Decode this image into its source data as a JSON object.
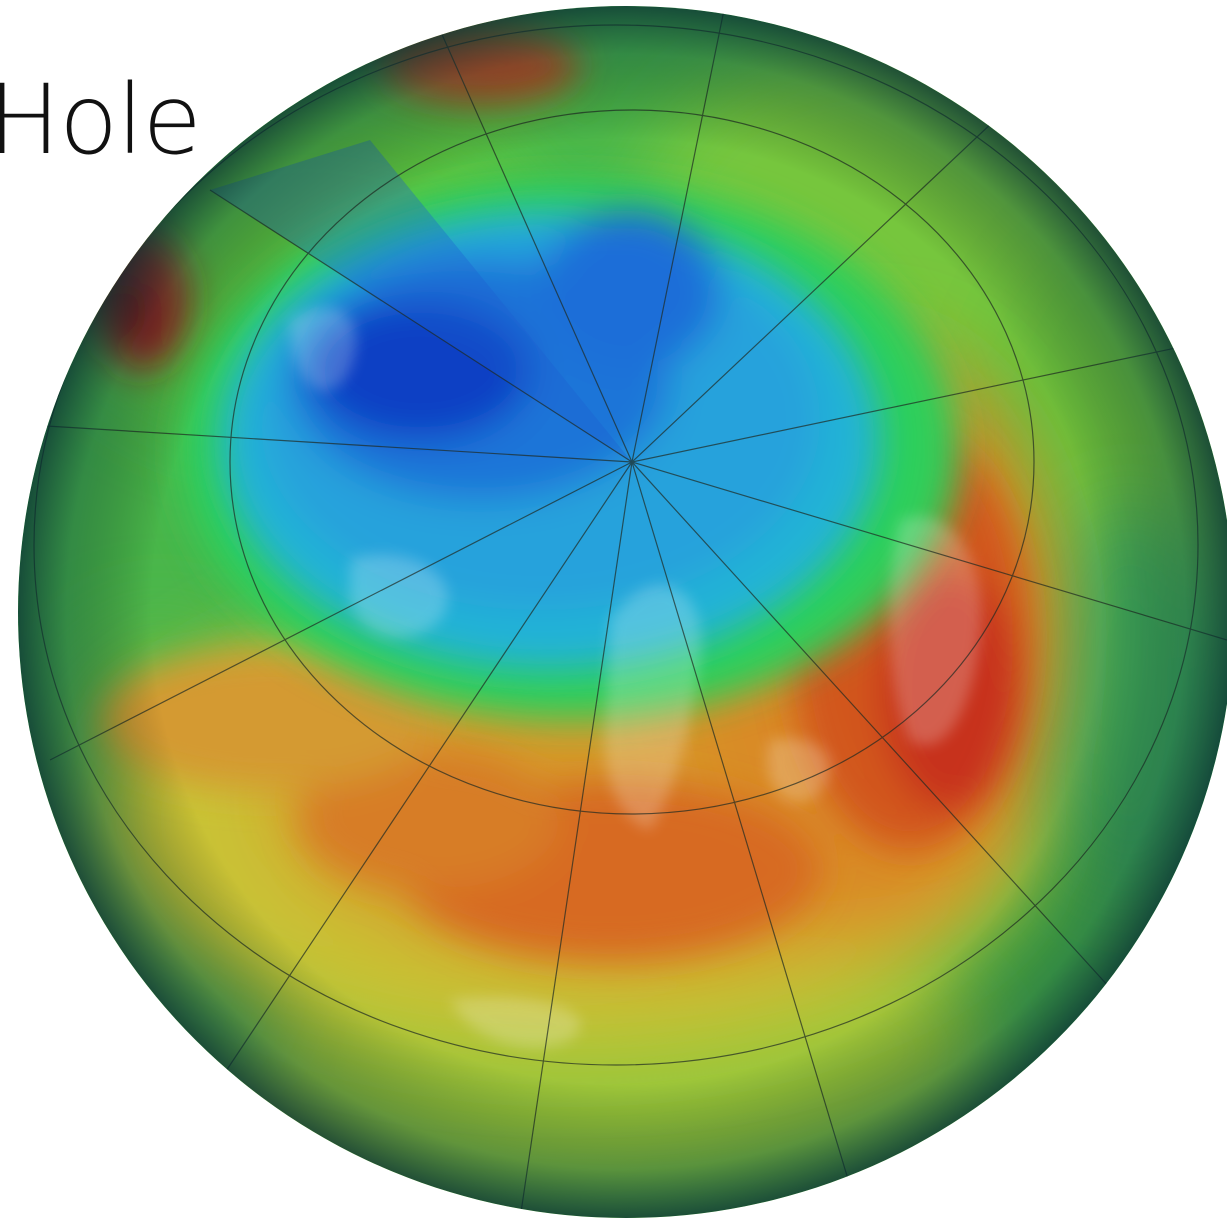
{
  "slide": {
    "title": "Hole"
  },
  "map": {
    "projection": "orthographic",
    "center": "north-pole",
    "layer": "total-column-ozone",
    "colormap": [
      "#0a2fb8",
      "#1c6fd8",
      "#22b4d8",
      "#2fcf6a",
      "#7ed23a",
      "#d8c430",
      "#e07a22",
      "#c8281c",
      "#8a0e0a"
    ],
    "graticule": "on"
  }
}
